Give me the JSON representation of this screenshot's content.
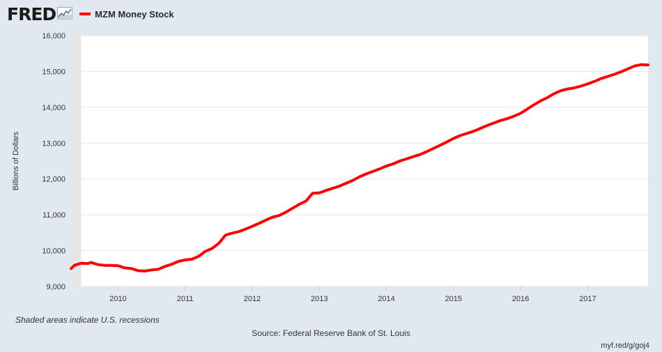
{
  "header": {
    "logo_text": "FRED",
    "legend_label": "MZM Money Stock"
  },
  "footer": {
    "note": "Shaded areas indicate U.S. recessions",
    "source": "Source: Federal Reserve Bank of St. Louis",
    "link": "myf.red/g/goj4"
  },
  "colors": {
    "series": "#ff0000",
    "background": "#e1e9f0",
    "plot_background": "#ffffff",
    "recession_shade": "#e6e6e6",
    "gridline": "#e6e6e6"
  },
  "chart_data": {
    "type": "line",
    "title": "",
    "ylabel": "Billions of Dollars",
    "xlabel": "",
    "xlim": [
      2009.3,
      2017.9
    ],
    "ylim": [
      9000,
      16000
    ],
    "y_ticks": [
      9000,
      10000,
      11000,
      12000,
      13000,
      14000,
      15000,
      16000
    ],
    "y_tick_labels": [
      "9,000",
      "10,000",
      "11,000",
      "12,000",
      "13,000",
      "14,000",
      "15,000",
      "16,000"
    ],
    "x_ticks": [
      2010,
      2011,
      2012,
      2013,
      2014,
      2015,
      2016,
      2017
    ],
    "x_tick_labels": [
      "2010",
      "2011",
      "2012",
      "2013",
      "2014",
      "2015",
      "2016",
      "2017"
    ],
    "grid": true,
    "recessions": [
      [
        2009.3,
        2009.45
      ]
    ],
    "series": [
      {
        "name": "MZM Money Stock",
        "x": [
          2009.3,
          2009.35,
          2009.45,
          2009.55,
          2009.6,
          2009.7,
          2009.8,
          2009.9,
          2010.0,
          2010.1,
          2010.2,
          2010.3,
          2010.4,
          2010.5,
          2010.6,
          2010.7,
          2010.8,
          2010.9,
          2011.0,
          2011.1,
          2011.2,
          2011.3,
          2011.4,
          2011.5,
          2011.55,
          2011.6,
          2011.7,
          2011.8,
          2011.9,
          2012.0,
          2012.1,
          2012.2,
          2012.3,
          2012.4,
          2012.5,
          2012.6,
          2012.7,
          2012.8,
          2012.9,
          2013.0,
          2013.1,
          2013.2,
          2013.3,
          2013.4,
          2013.5,
          2013.6,
          2013.7,
          2013.8,
          2013.9,
          2014.0,
          2014.1,
          2014.2,
          2014.3,
          2014.4,
          2014.5,
          2014.6,
          2014.7,
          2014.8,
          2014.9,
          2015.0,
          2015.1,
          2015.2,
          2015.3,
          2015.4,
          2015.5,
          2015.6,
          2015.7,
          2015.8,
          2015.9,
          2016.0,
          2016.1,
          2016.2,
          2016.3,
          2016.4,
          2016.5,
          2016.6,
          2016.7,
          2016.8,
          2016.9,
          2017.0,
          2017.1,
          2017.2,
          2017.3,
          2017.4,
          2017.5,
          2017.6,
          2017.7,
          2017.8,
          2017.9
        ],
        "values": [
          9500,
          9590,
          9650,
          9640,
          9670,
          9610,
          9590,
          9590,
          9580,
          9520,
          9500,
          9440,
          9430,
          9460,
          9480,
          9560,
          9620,
          9700,
          9740,
          9760,
          9840,
          9980,
          10060,
          10200,
          10310,
          10430,
          10490,
          10530,
          10600,
          10680,
          10760,
          10850,
          10930,
          10980,
          11070,
          11180,
          11290,
          11380,
          11600,
          11610,
          11680,
          11740,
          11800,
          11880,
          11960,
          12060,
          12140,
          12210,
          12280,
          12360,
          12420,
          12500,
          12560,
          12620,
          12680,
          12760,
          12850,
          12940,
          13030,
          13130,
          13210,
          13270,
          13330,
          13410,
          13490,
          13560,
          13630,
          13680,
          13750,
          13830,
          13950,
          14070,
          14180,
          14270,
          14380,
          14460,
          14510,
          14540,
          14590,
          14650,
          14720,
          14800,
          14860,
          14920,
          14990,
          15070,
          15150,
          15190,
          15180
        ]
      }
    ]
  }
}
